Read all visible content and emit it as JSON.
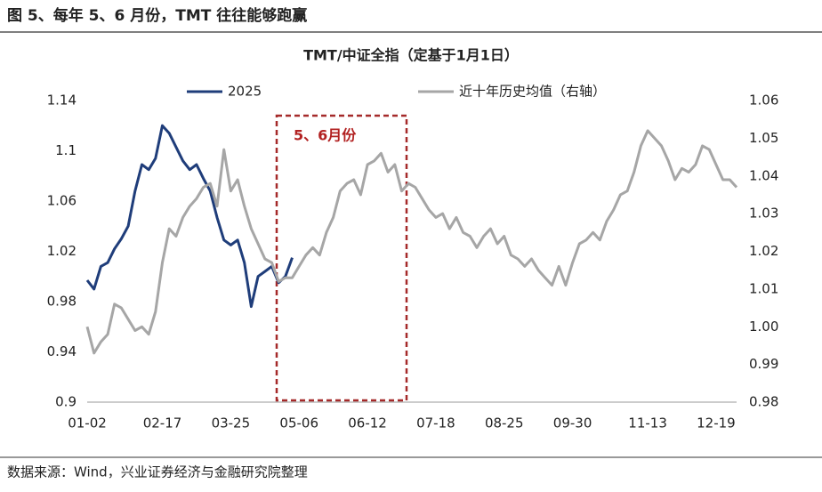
{
  "header": {
    "title": "图 5、每年 5、6 月份，TMT 往往能够跑赢"
  },
  "chart_data": {
    "type": "line",
    "title": "TMT/中证全指（定基于1月1日）",
    "categories": [
      "01-02",
      null,
      null,
      null,
      null,
      null,
      null,
      null,
      null,
      null,
      null,
      "02-17",
      null,
      null,
      null,
      null,
      null,
      null,
      null,
      null,
      null,
      "03-25",
      null,
      null,
      null,
      null,
      null,
      null,
      null,
      null,
      null,
      "05-06",
      null,
      null,
      null,
      null,
      null,
      null,
      null,
      null,
      null,
      "06-12",
      null,
      null,
      null,
      null,
      null,
      null,
      null,
      null,
      null,
      "07-18",
      null,
      null,
      null,
      null,
      null,
      null,
      null,
      null,
      null,
      "08-25",
      null,
      null,
      null,
      null,
      null,
      null,
      null,
      null,
      null,
      "09-30",
      null,
      null,
      null,
      null,
      null,
      null,
      null,
      null,
      null,
      null,
      "11-13",
      null,
      null,
      null,
      null,
      null,
      null,
      null,
      null,
      null,
      "12-19",
      null,
      null,
      null
    ],
    "series": [
      {
        "name": "2025",
        "color": "#1f3d7a",
        "values": [
          0.997,
          0.99,
          1.008,
          1.011,
          1.022,
          1.03,
          1.04,
          1.068,
          1.089,
          1.085,
          1.094,
          1.12,
          1.114,
          1.103,
          1.092,
          1.085,
          1.089,
          1.078,
          1.068,
          1.047,
          1.029,
          1.025,
          1.029,
          1.011,
          0.976,
          1.0,
          1.004,
          1.008,
          0.995,
          1.0,
          1.015,
          null,
          null,
          null,
          null,
          null,
          null,
          null,
          null,
          null,
          null,
          null,
          null,
          null,
          null,
          null,
          null,
          null,
          null,
          null,
          null,
          null,
          null,
          null,
          null,
          null,
          null,
          null,
          null,
          null,
          null,
          null,
          null,
          null,
          null,
          null,
          null,
          null,
          null,
          null,
          null,
          null,
          null,
          null,
          null,
          null,
          null,
          null,
          null,
          null,
          null,
          null,
          null,
          null,
          null,
          null,
          null,
          null,
          null,
          null,
          null,
          null,
          null,
          null,
          null,
          null
        ]
      },
      {
        "name": "近十年历史均值（右轴）",
        "color": "#a6a6a6",
        "axis": "y2",
        "values": [
          1.0,
          0.993,
          0.996,
          0.998,
          1.006,
          1.005,
          1.002,
          0.999,
          1.0,
          0.998,
          1.004,
          1.017,
          1.026,
          1.024,
          1.029,
          1.032,
          1.034,
          1.037,
          1.038,
          1.032,
          1.047,
          1.036,
          1.039,
          1.032,
          1.026,
          1.022,
          1.018,
          1.017,
          1.012,
          1.013,
          1.013,
          1.016,
          1.019,
          1.021,
          1.019,
          1.025,
          1.029,
          1.036,
          1.038,
          1.039,
          1.035,
          1.043,
          1.044,
          1.046,
          1.041,
          1.043,
          1.036,
          1.038,
          1.037,
          1.034,
          1.031,
          1.029,
          1.03,
          1.026,
          1.029,
          1.025,
          1.024,
          1.021,
          1.024,
          1.026,
          1.022,
          1.024,
          1.019,
          1.018,
          1.016,
          1.018,
          1.015,
          1.013,
          1.011,
          1.016,
          1.011,
          1.017,
          1.022,
          1.023,
          1.025,
          1.023,
          1.028,
          1.031,
          1.035,
          1.036,
          1.041,
          1.048,
          1.052,
          1.05,
          1.048,
          1.044,
          1.039,
          1.042,
          1.041,
          1.043,
          1.048,
          1.047,
          1.043,
          1.039,
          1.039,
          1.037
        ]
      }
    ],
    "ylim": [
      0.9,
      1.14
    ],
    "yticks": [
      0.9,
      0.94,
      0.98,
      1.02,
      1.06,
      1.1,
      1.14
    ],
    "y2lim": [
      0.98,
      1.06
    ],
    "y2ticks": [
      0.98,
      0.99,
      {
        "value": 1,
        "label": "1.00"
      },
      1.01,
      1.02,
      1.03,
      1.04,
      1.05,
      1.06
    ],
    "annotation": "5、6月份"
  },
  "footer": {
    "source": "数据来源：Wind，兴业证券经济与金融研究院整理"
  }
}
